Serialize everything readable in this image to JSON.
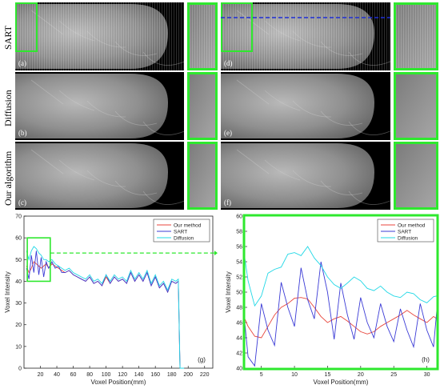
{
  "rows": [
    {
      "label": "SART",
      "left_tag": "(a)",
      "right_tag": "(d)"
    },
    {
      "label": "Diffusion",
      "left_tag": "(b)",
      "right_tag": "(e)"
    },
    {
      "label": "Our algorithm",
      "left_tag": "(c)",
      "right_tag": "(f)"
    }
  ],
  "colors": {
    "highlight": "#2ee82e",
    "profile_line": "#1f2fd6"
  },
  "chart_data": [
    {
      "type": "line",
      "panel_label": "(g)",
      "xlabel": "Voxel Position(mm)",
      "ylabel": "Voxel Intensity",
      "xlim": [
        0,
        230
      ],
      "ylim": [
        0,
        70
      ],
      "x_ticks": [
        20,
        40,
        60,
        80,
        100,
        120,
        140,
        160,
        180,
        200,
        220
      ],
      "y_ticks": [
        0,
        10,
        20,
        30,
        40,
        50,
        60,
        70
      ],
      "legend_position": "top-right",
      "x": [
        3,
        6,
        9,
        12,
        15,
        18,
        21,
        24,
        27,
        30,
        34,
        38,
        42,
        46,
        50,
        55,
        60,
        65,
        70,
        75,
        80,
        85,
        90,
        95,
        100,
        105,
        110,
        115,
        120,
        125,
        130,
        135,
        140,
        145,
        150,
        155,
        160,
        165,
        170,
        175,
        180,
        185,
        188,
        190,
        192,
        195
      ],
      "series": [
        {
          "name": "Our method",
          "color": "#e8463c",
          "values": [
            47,
            44,
            46,
            49,
            48,
            47,
            46,
            47,
            48,
            46,
            48,
            47,
            46,
            45,
            44,
            45,
            43,
            42,
            41,
            40,
            42,
            39,
            40,
            38,
            42,
            39,
            42,
            40,
            41,
            39,
            44,
            40,
            43,
            40,
            44,
            38,
            42,
            37,
            39,
            35,
            40,
            39,
            40,
            0,
            0,
            0
          ]
        },
        {
          "name": "SART",
          "color": "#3b3bd6",
          "values": [
            46,
            41,
            52,
            44,
            54,
            43,
            51,
            42,
            49,
            46,
            49,
            46,
            47,
            44,
            44,
            45,
            43,
            42,
            41,
            40,
            42,
            39,
            40,
            38,
            43,
            39,
            42,
            40,
            41,
            39,
            44,
            40,
            43,
            40,
            44,
            38,
            42,
            37,
            39,
            35,
            40,
            39,
            40,
            0,
            0,
            0
          ]
        },
        {
          "name": "Diffusion",
          "color": "#22d8e6",
          "values": [
            54,
            50,
            54,
            56,
            55,
            53,
            52,
            50,
            50,
            49,
            50,
            48,
            47,
            46,
            45,
            46,
            44,
            43,
            42,
            41,
            43,
            40,
            41,
            39,
            43,
            40,
            43,
            41,
            42,
            40,
            45,
            41,
            44,
            41,
            45,
            39,
            43,
            38,
            40,
            36,
            41,
            40,
            41,
            0,
            0,
            0
          ]
        }
      ]
    },
    {
      "type": "line",
      "panel_label": "(h)",
      "xlabel": "Voxel Position(mm)",
      "ylabel": "Voxel Intensity",
      "xlim": [
        2.5,
        31.5
      ],
      "ylim": [
        40,
        60
      ],
      "x_ticks": [
        5,
        10,
        15,
        20,
        25,
        30
      ],
      "y_ticks": [
        40,
        42,
        44,
        46,
        48,
        50,
        52,
        54,
        56,
        58,
        60
      ],
      "legend_position": "top-right",
      "x": [
        2.5,
        3,
        4,
        5,
        6,
        7,
        8,
        9,
        10,
        11,
        12,
        13,
        14,
        15,
        16,
        17,
        18,
        19,
        20,
        21,
        22,
        23,
        24,
        25,
        26,
        27,
        28,
        29,
        30,
        31,
        31.5
      ],
      "series": [
        {
          "name": "Our method",
          "color": "#e8463c",
          "values": [
            46.5,
            45.5,
            44.2,
            44.0,
            45.5,
            47.0,
            48.0,
            48.5,
            49.2,
            49.3,
            49.1,
            48.0,
            46.8,
            46.0,
            46.5,
            46.8,
            46.2,
            45.5,
            44.8,
            44.5,
            44.8,
            45.5,
            46.0,
            46.5,
            47.0,
            47.6,
            47.0,
            46.5,
            46.0,
            46.8,
            46.5
          ]
        },
        {
          "name": "SART",
          "color": "#3b3bd6",
          "values": [
            46.0,
            41.5,
            40.3,
            48.5,
            45.0,
            43.0,
            51.3,
            48.0,
            45.5,
            53.2,
            49.0,
            46.5,
            54.0,
            50.0,
            43.8,
            51.2,
            47.0,
            43.8,
            49.3,
            46.0,
            44.0,
            48.5,
            45.5,
            43.5,
            47.8,
            45.0,
            42.8,
            48.5,
            45.0,
            42.8,
            47.6
          ]
        },
        {
          "name": "Diffusion",
          "color": "#22d8e6",
          "values": [
            54.5,
            51.5,
            48.2,
            49.5,
            52.5,
            53.0,
            53.3,
            55.0,
            55.2,
            54.8,
            56.0,
            54.5,
            53.5,
            52.0,
            51.0,
            50.5,
            51.2,
            52.0,
            51.5,
            50.5,
            50.2,
            50.8,
            50.0,
            49.5,
            49.3,
            50.0,
            49.8,
            49.0,
            48.6,
            49.4,
            49.5
          ]
        }
      ]
    }
  ]
}
